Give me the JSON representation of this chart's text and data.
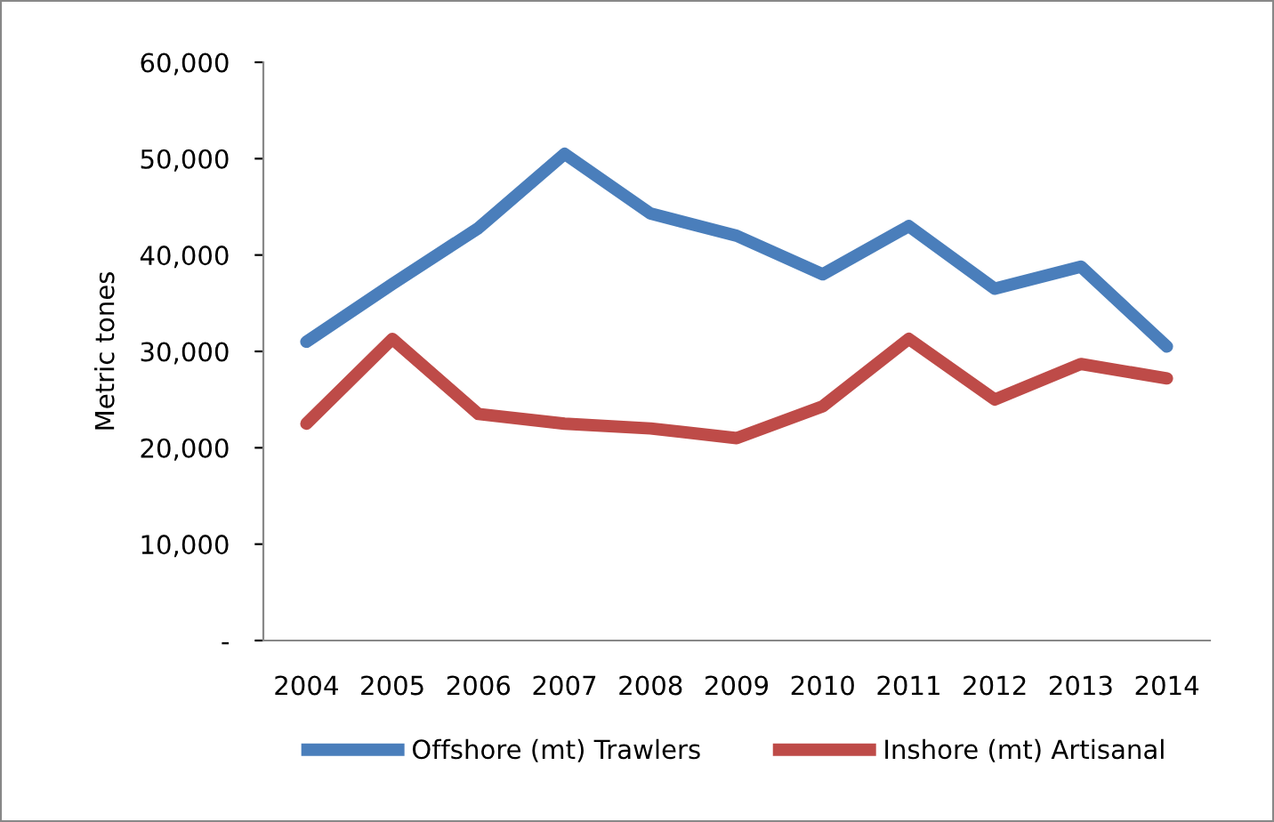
{
  "chart_data": {
    "type": "line",
    "ylabel": "Metric tones",
    "categories": [
      "2004",
      "2005",
      "2006",
      "2007",
      "2008",
      "2009",
      "2010",
      "2011",
      "2012",
      "2013",
      "2014"
    ],
    "series": [
      {
        "name": "Offshore (mt) Trawlers",
        "color": "#4a7ebb",
        "values": [
          31000,
          37000,
          42800,
          50500,
          44300,
          42000,
          38000,
          43000,
          36500,
          38800,
          30500
        ]
      },
      {
        "name": "Inshore (mt) Artisanal",
        "color": "#be4b48",
        "values": [
          22500,
          31300,
          23500,
          22500,
          22000,
          21000,
          24300,
          31300,
          25000,
          28700,
          27200
        ]
      }
    ],
    "ylim": [
      0,
      60000
    ],
    "yticks": [
      {
        "value": 0,
        "label": "-"
      },
      {
        "value": 10000,
        "label": "10,000"
      },
      {
        "value": 20000,
        "label": "20,000"
      },
      {
        "value": 30000,
        "label": "30,000"
      },
      {
        "value": 40000,
        "label": "40,000"
      },
      {
        "value": 50000,
        "label": "50,000"
      },
      {
        "value": 60000,
        "label": "60,000"
      }
    ],
    "grid": false,
    "legend": "bottom",
    "marker": "none",
    "line_style": "solid"
  }
}
